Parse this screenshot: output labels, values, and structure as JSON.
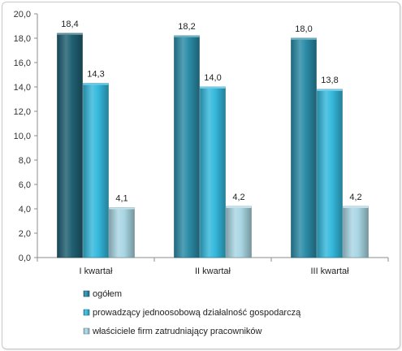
{
  "chart_data": {
    "type": "bar",
    "categories": [
      "I kwartał",
      "II kwartał",
      "III kwartał"
    ],
    "series": [
      {
        "name": "ogółem",
        "values": [
          18.4,
          18.2,
          18.0
        ],
        "labels": [
          "18,4",
          "18,2",
          "18,0"
        ],
        "color": "#2a8ba6",
        "color_first": "#1f5f72"
      },
      {
        "name": "prowadzący jednoosobową działalność gospodarczą",
        "values": [
          14.3,
          14.0,
          13.8
        ],
        "labels": [
          "14,3",
          "14,0",
          "13,8"
        ],
        "color": "#34b8dc"
      },
      {
        "name": "właściciele firm zatrudniający pracowników",
        "values": [
          4.1,
          4.2,
          4.2
        ],
        "labels": [
          "4,1",
          "4,2",
          "4,2"
        ],
        "color": "#a9d6e3"
      }
    ],
    "y_ticks": [
      "0,0",
      "2,0",
      "4,0",
      "6,0",
      "8,0",
      "10,0",
      "12,0",
      "14,0",
      "16,0",
      "18,0",
      "20,0"
    ],
    "ylim": [
      0,
      20
    ],
    "grid": false,
    "legend": "bottom"
  }
}
